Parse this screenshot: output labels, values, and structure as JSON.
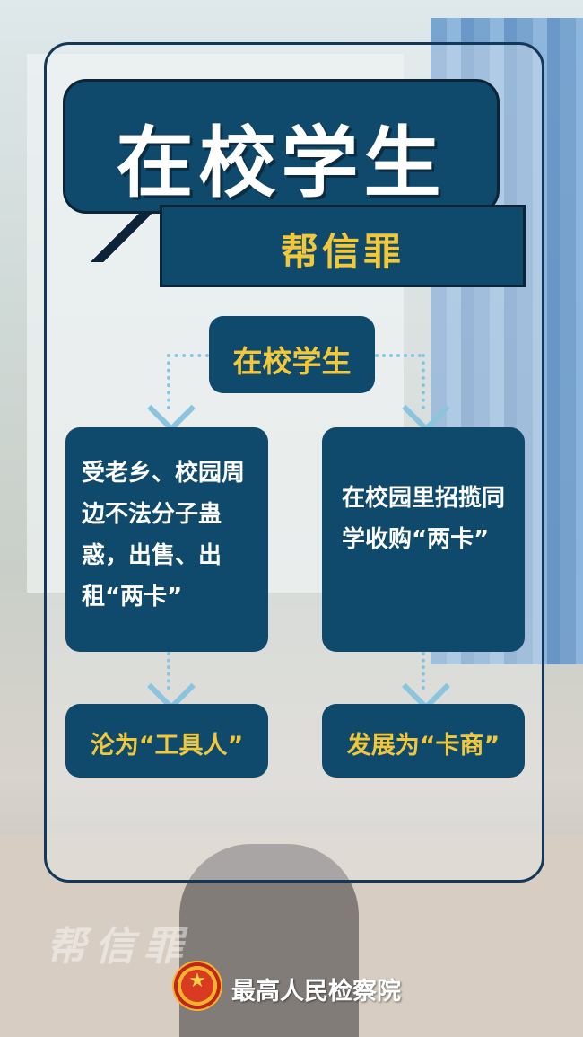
{
  "title": "在校学生",
  "subtitle": "帮信罪",
  "flow": {
    "root": "在校学生",
    "left_case": "受老乡、校园周边不法分子蛊惑，出售、出租“两卡”",
    "right_case": "在校园里招揽同学收购“两卡”",
    "left_result": "沦为“工具人”",
    "right_result": "发展为“卡商”"
  },
  "watermark": "帮信罪",
  "footer": {
    "org": "最高人民检察院",
    "emblem_icon": "emblem-icon"
  },
  "colors": {
    "navy": "#0f4a6c",
    "gold": "#f3c73a",
    "dots": "#8cc4de"
  }
}
